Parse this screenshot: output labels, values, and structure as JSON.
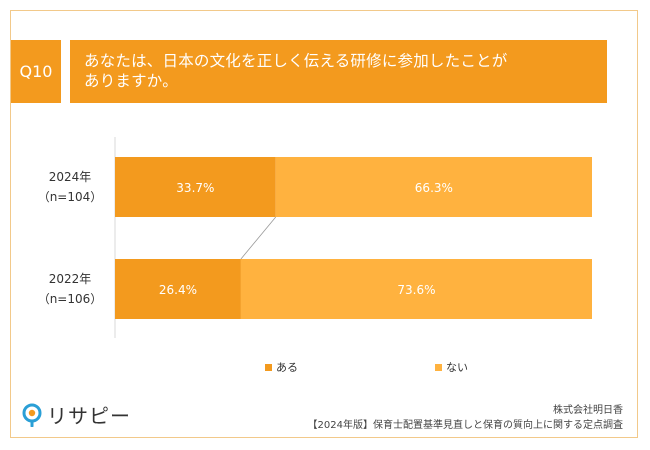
{
  "question": {
    "badge": "Q10",
    "text_line1": "あなたは、日本の文化を正しく伝える研修に参加したことが",
    "text_line2": "ありますか。"
  },
  "colors": {
    "accent": "#f39a1e",
    "series_aru": "#f39a1e",
    "series_nai": "#ffb23f",
    "frame": "#f2c98a"
  },
  "chart_data": {
    "type": "bar",
    "orientation": "horizontal-stacked-100",
    "categories": [
      {
        "year": "2024年",
        "n": "（n=104）"
      },
      {
        "year": "2022年",
        "n": "（n=106）"
      }
    ],
    "series": [
      {
        "name": "ある",
        "values": [
          33.7,
          26.4
        ],
        "labels": [
          "33.7%",
          "26.4%"
        ]
      },
      {
        "name": "ない",
        "values": [
          66.3,
          73.6
        ],
        "labels": [
          "66.3%",
          "73.6%"
        ]
      }
    ],
    "xlim": [
      0,
      100
    ],
    "legend_position": "bottom",
    "grid": false
  },
  "footer": {
    "logo_text": "リサピー",
    "company": "株式会社明日香",
    "survey": "【2024年版】保育士配置基準見直しと保育の質向上に関する定点調査"
  }
}
